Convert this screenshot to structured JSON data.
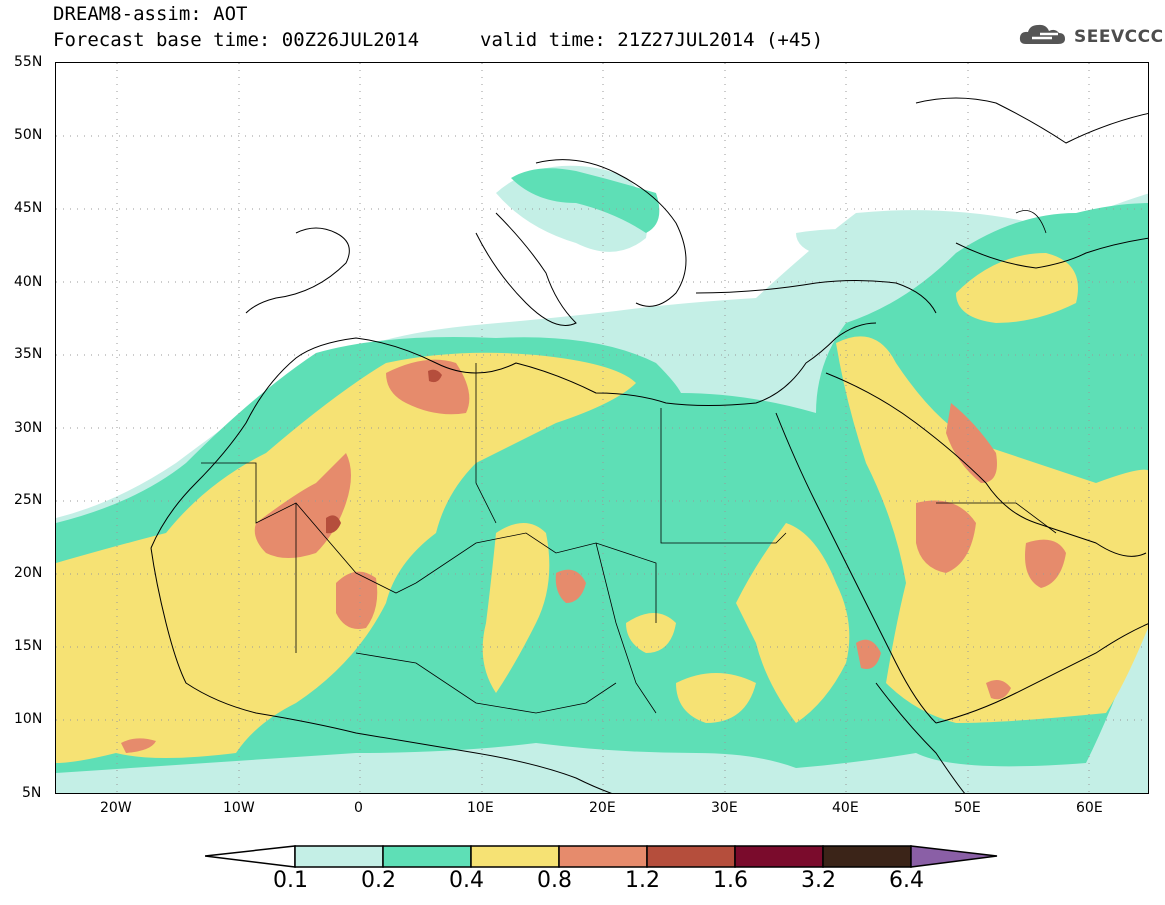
{
  "header": {
    "title_line1": "DREAM8-assim: AOT",
    "title_line2": "Forecast base time: 00Z26JUL2014",
    "valid_time": "valid time: 21Z27JUL2014 (+45)",
    "logo_text": "SEEVCCC"
  },
  "map": {
    "variable": "AOT",
    "lat_labels": [
      "55N",
      "50N",
      "45N",
      "40N",
      "35N",
      "30N",
      "25N",
      "20N",
      "15N",
      "10N",
      "5N"
    ],
    "lon_labels": [
      "20W",
      "10W",
      "0",
      "10E",
      "20E",
      "30E",
      "40E",
      "50E",
      "60E"
    ],
    "extent": {
      "lon_min": -25,
      "lon_max": 65,
      "lat_min": 5,
      "lat_max": 55
    }
  },
  "legend": {
    "labels": [
      "0.1",
      "0.2",
      "0.4",
      "0.8",
      "1.2",
      "1.6",
      "3.2",
      "6.4"
    ],
    "colors": [
      "#ffffff",
      "#c4efe6",
      "#5edfb6",
      "#f6e274",
      "#e68b6c",
      "#b54e3c",
      "#7a0b2c",
      "#3b2418",
      "#8a5fa6"
    ]
  }
}
